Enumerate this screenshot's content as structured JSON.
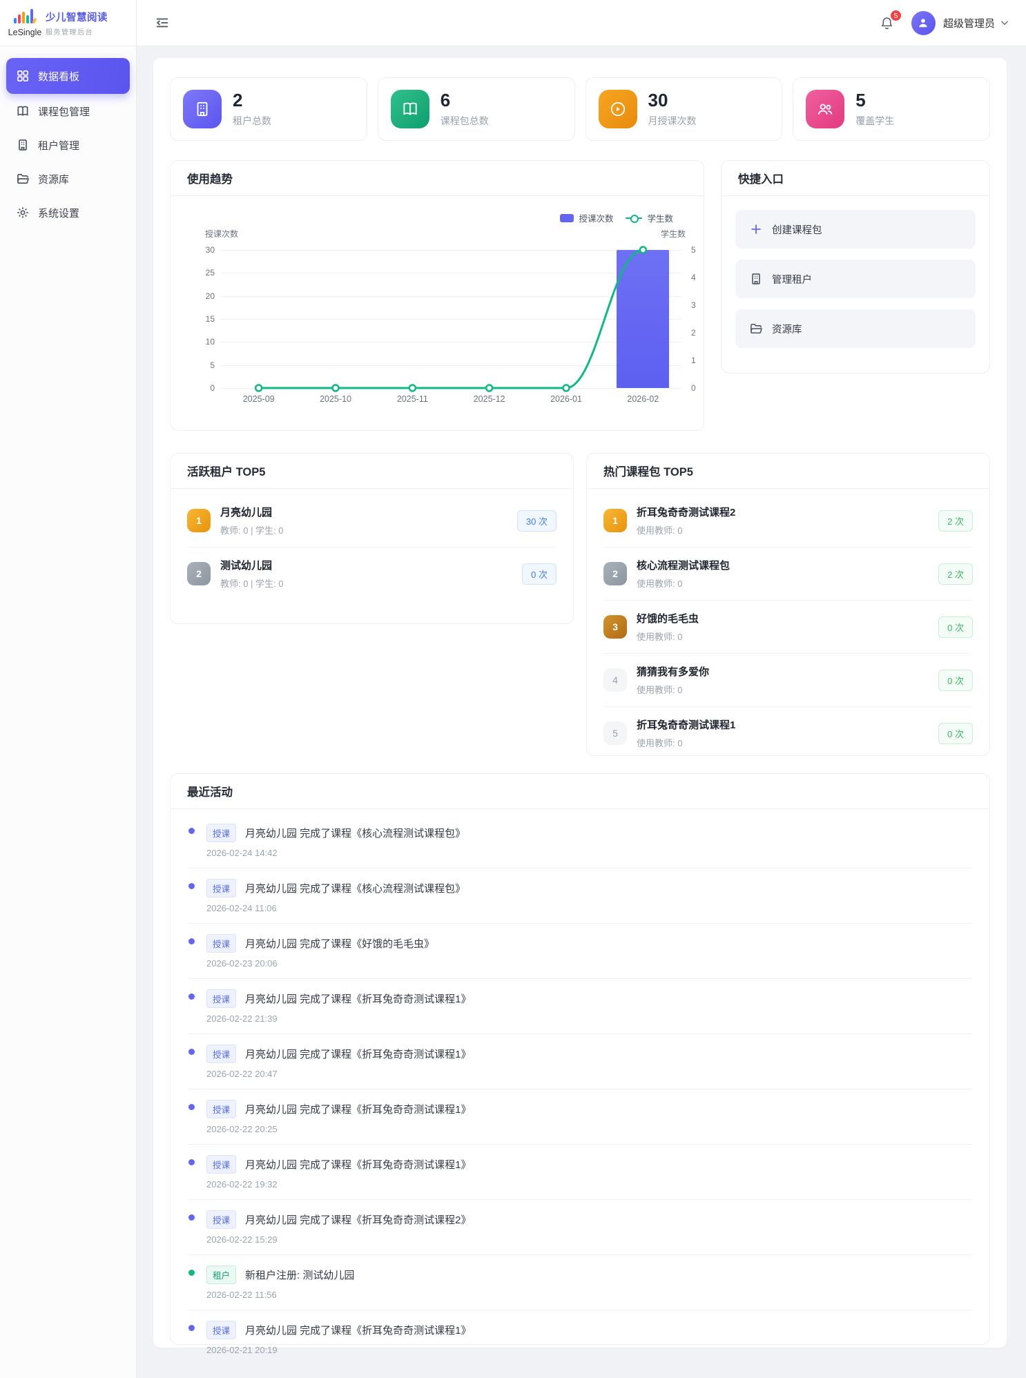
{
  "brand": {
    "logo_text": "LeSingle",
    "title": "少儿智慧阅读",
    "subtitle": "服务管理后台"
  },
  "sidebar": {
    "items": [
      {
        "label": "数据看板",
        "icon": "dashboard-icon",
        "active": true
      },
      {
        "label": "课程包管理",
        "icon": "book-icon",
        "active": false
      },
      {
        "label": "租户管理",
        "icon": "building-icon",
        "active": false
      },
      {
        "label": "资源库",
        "icon": "folder-icon",
        "active": false
      },
      {
        "label": "系统设置",
        "icon": "gear-icon",
        "active": false
      }
    ]
  },
  "header": {
    "notification_count": "5",
    "user_name": "超级管理员"
  },
  "colors": {
    "primary": "#6366f1",
    "green": "#10b981",
    "orange": "#f59e0b",
    "pink": "#ec4899",
    "badge_red": "#ef4444"
  },
  "stats": [
    {
      "value": "2",
      "label": "租户总数",
      "icon": "building-icon",
      "color": "#6366f1"
    },
    {
      "value": "6",
      "label": "课程包总数",
      "icon": "book-icon",
      "color": "#10b981"
    },
    {
      "value": "30",
      "label": "月授课次数",
      "icon": "play-icon",
      "color": "#f59e0b"
    },
    {
      "value": "5",
      "label": "覆盖学生",
      "icon": "students-icon",
      "color": "#ec4899"
    }
  ],
  "chart_data": {
    "type": "bar+line",
    "title": "使用趋势",
    "categories": [
      "2025-09",
      "2025-10",
      "2025-11",
      "2025-12",
      "2026-01",
      "2026-02"
    ],
    "series": [
      {
        "name": "授课次数",
        "type": "bar",
        "axis": "left",
        "color": "#6366f1",
        "values": [
          0,
          0,
          0,
          0,
          0,
          30
        ]
      },
      {
        "name": "学生数",
        "type": "line",
        "axis": "right",
        "color": "#10b981",
        "values": [
          0,
          0,
          0,
          0,
          0,
          5
        ]
      }
    ],
    "left_axis": {
      "label": "授课次数",
      "min": 0,
      "max": 30,
      "ticks": [
        0,
        5,
        10,
        15,
        20,
        25,
        30
      ]
    },
    "right_axis": {
      "label": "学生数",
      "min": 0,
      "max": 5,
      "ticks": [
        0,
        1,
        2,
        3,
        4,
        5
      ]
    },
    "legend": [
      "授课次数",
      "学生数"
    ],
    "legend_position": "top-right",
    "grid": true
  },
  "quick_entry": {
    "title": "快捷入口",
    "items": [
      {
        "label": "创建课程包",
        "icon": "plus-icon"
      },
      {
        "label": "管理租户",
        "icon": "building-icon"
      },
      {
        "label": "资源库",
        "icon": "folder-icon"
      }
    ]
  },
  "active_tenants": {
    "title": "活跃租户 TOP5",
    "items": [
      {
        "rank": "1",
        "name": "月亮幼儿园",
        "meta": "教师: 0 | 学生: 0",
        "badge": "30 次"
      },
      {
        "rank": "2",
        "name": "测试幼儿园",
        "meta": "教师: 0 | 学生: 0",
        "badge": "0 次"
      }
    ]
  },
  "hot_courses": {
    "title": "热门课程包 TOP5",
    "items": [
      {
        "rank": "1",
        "name": "折耳兔奇奇测试课程2",
        "meta": "使用教师: 0",
        "badge": "2 次"
      },
      {
        "rank": "2",
        "name": "核心流程测试课程包",
        "meta": "使用教师: 0",
        "badge": "2 次"
      },
      {
        "rank": "3",
        "name": "好饿的毛毛虫",
        "meta": "使用教师: 0",
        "badge": "0 次"
      },
      {
        "rank": "4",
        "name": "猜猜我有多爱你",
        "meta": "使用教师: 0",
        "badge": "0 次"
      },
      {
        "rank": "5",
        "name": "折耳兔奇奇测试课程1",
        "meta": "使用教师: 0",
        "badge": "0 次"
      }
    ]
  },
  "recent_activity": {
    "title": "最近活动",
    "items": [
      {
        "type": "class",
        "tag": "授课",
        "text": "月亮幼儿园 完成了课程《核心流程测试课程包》",
        "time": "2026-02-24 14:42"
      },
      {
        "type": "class",
        "tag": "授课",
        "text": "月亮幼儿园 完成了课程《核心流程测试课程包》",
        "time": "2026-02-24 11:06"
      },
      {
        "type": "class",
        "tag": "授课",
        "text": "月亮幼儿园 完成了课程《好饿的毛毛虫》",
        "time": "2026-02-23 20:06"
      },
      {
        "type": "class",
        "tag": "授课",
        "text": "月亮幼儿园 完成了课程《折耳兔奇奇测试课程1》",
        "time": "2026-02-22 21:39"
      },
      {
        "type": "class",
        "tag": "授课",
        "text": "月亮幼儿园 完成了课程《折耳兔奇奇测试课程1》",
        "time": "2026-02-22 20:47"
      },
      {
        "type": "class",
        "tag": "授课",
        "text": "月亮幼儿园 完成了课程《折耳兔奇奇测试课程1》",
        "time": "2026-02-22 20:25"
      },
      {
        "type": "class",
        "tag": "授课",
        "text": "月亮幼儿园 完成了课程《折耳兔奇奇测试课程1》",
        "time": "2026-02-22 19:32"
      },
      {
        "type": "class",
        "tag": "授课",
        "text": "月亮幼儿园 完成了课程《折耳兔奇奇测试课程2》",
        "time": "2026-02-22 15:29"
      },
      {
        "type": "tenant",
        "tag": "租户",
        "text": "新租户注册: 测试幼儿园",
        "time": "2026-02-22 11:56"
      },
      {
        "type": "class",
        "tag": "授课",
        "text": "月亮幼儿园 完成了课程《折耳兔奇奇测试课程1》",
        "time": "2026-02-21 20:19"
      }
    ]
  }
}
